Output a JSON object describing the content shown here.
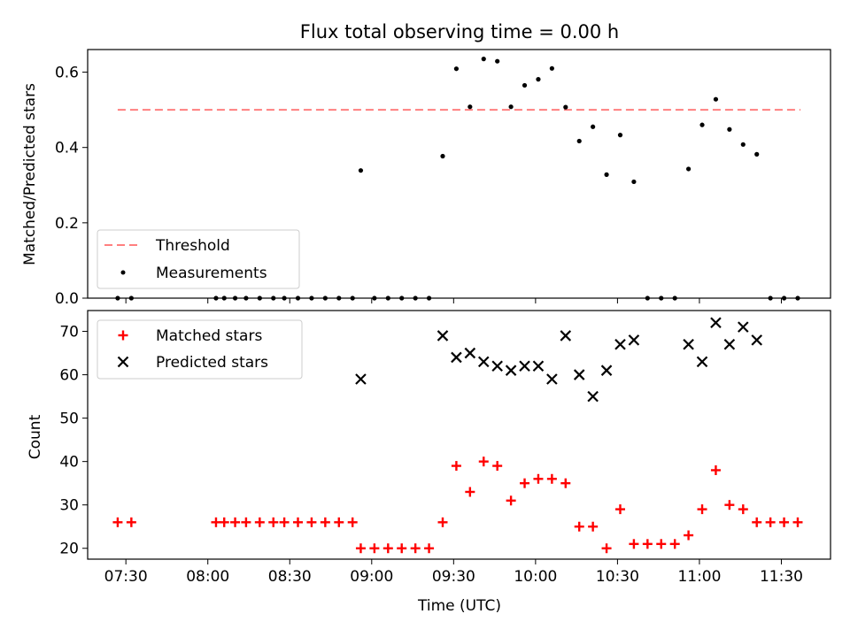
{
  "chart_data": [
    {
      "type": "scatter",
      "title": "Flux total observing time = 0.00 h",
      "xlabel": "",
      "ylabel": "Matched/Predicted stars",
      "ylim": [
        0,
        0.66
      ],
      "yticks": [
        "0.0",
        "0.2",
        "0.4",
        "0.6"
      ],
      "xticks": [
        "07:30",
        "08:00",
        "08:30",
        "09:00",
        "09:30",
        "10:00",
        "10:30",
        "11:00",
        "11:30"
      ],
      "threshold": {
        "name": "Threshold",
        "value": 0.5,
        "x_start": "07:27",
        "x_end": "11:37",
        "color": "#ff7f7f"
      },
      "series": [
        {
          "name": "Measurements",
          "color": "#000000",
          "points": [
            [
              "07:27",
              0.0
            ],
            [
              "07:32",
              0.0
            ],
            [
              "08:03",
              0.0
            ],
            [
              "08:06",
              0.0
            ],
            [
              "08:10",
              0.0
            ],
            [
              "08:14",
              0.0
            ],
            [
              "08:19",
              0.0
            ],
            [
              "08:24",
              0.0
            ],
            [
              "08:28",
              0.0
            ],
            [
              "08:33",
              0.0
            ],
            [
              "08:38",
              0.0
            ],
            [
              "08:43",
              0.0
            ],
            [
              "08:48",
              0.0
            ],
            [
              "08:53",
              0.0
            ],
            [
              "08:56",
              0.339
            ],
            [
              "09:01",
              0.0
            ],
            [
              "09:06",
              0.0
            ],
            [
              "09:11",
              0.0
            ],
            [
              "09:16",
              0.0
            ],
            [
              "09:21",
              0.0
            ],
            [
              "09:26",
              0.377
            ],
            [
              "09:31",
              0.609
            ],
            [
              "09:36",
              0.508
            ],
            [
              "09:41",
              0.635
            ],
            [
              "09:46",
              0.629
            ],
            [
              "09:51",
              0.508
            ],
            [
              "09:56",
              0.565
            ],
            [
              "10:01",
              0.581
            ],
            [
              "10:06",
              0.61
            ],
            [
              "10:11",
              0.507
            ],
            [
              "10:16",
              0.417
            ],
            [
              "10:21",
              0.455
            ],
            [
              "10:26",
              0.328
            ],
            [
              "10:31",
              0.433
            ],
            [
              "10:36",
              0.309
            ],
            [
              "10:41",
              0.0
            ],
            [
              "10:46",
              0.0
            ],
            [
              "10:51",
              0.0
            ],
            [
              "10:56",
              0.343
            ],
            [
              "11:01",
              0.46
            ],
            [
              "11:06",
              0.528
            ],
            [
              "11:11",
              0.448
            ],
            [
              "11:16",
              0.408
            ],
            [
              "11:21",
              0.382
            ],
            [
              "11:26",
              0.0
            ],
            [
              "11:31",
              0.0
            ],
            [
              "11:36",
              0.0
            ]
          ]
        }
      ],
      "legend": {
        "placement": "lower-left",
        "entries": [
          "Threshold",
          "Measurements"
        ]
      }
    },
    {
      "type": "scatter",
      "title": "",
      "xlabel": "Time (UTC)",
      "ylabel": "Count",
      "ylim": [
        17.5,
        74.8
      ],
      "yticks": [
        "20",
        "30",
        "40",
        "50",
        "60",
        "70"
      ],
      "xticks": [
        "07:30",
        "08:00",
        "08:30",
        "09:00",
        "09:30",
        "10:00",
        "10:30",
        "11:00",
        "11:30"
      ],
      "series": [
        {
          "name": "Matched stars",
          "color": "#ff0000",
          "marker": "plus",
          "points": [
            [
              "07:27",
              26
            ],
            [
              "07:32",
              26
            ],
            [
              "08:03",
              26
            ],
            [
              "08:06",
              26
            ],
            [
              "08:10",
              26
            ],
            [
              "08:14",
              26
            ],
            [
              "08:19",
              26
            ],
            [
              "08:24",
              26
            ],
            [
              "08:28",
              26
            ],
            [
              "08:33",
              26
            ],
            [
              "08:38",
              26
            ],
            [
              "08:43",
              26
            ],
            [
              "08:48",
              26
            ],
            [
              "08:53",
              26
            ],
            [
              "08:56",
              20
            ],
            [
              "09:01",
              20
            ],
            [
              "09:06",
              20
            ],
            [
              "09:11",
              20
            ],
            [
              "09:16",
              20
            ],
            [
              "09:21",
              20
            ],
            [
              "09:26",
              26
            ],
            [
              "09:31",
              39
            ],
            [
              "09:36",
              33
            ],
            [
              "09:41",
              40
            ],
            [
              "09:46",
              39
            ],
            [
              "09:51",
              31
            ],
            [
              "09:56",
              35
            ],
            [
              "10:01",
              36
            ],
            [
              "10:06",
              36
            ],
            [
              "10:11",
              35
            ],
            [
              "10:16",
              25
            ],
            [
              "10:21",
              25
            ],
            [
              "10:26",
              20
            ],
            [
              "10:31",
              29
            ],
            [
              "10:36",
              21
            ],
            [
              "10:41",
              21
            ],
            [
              "10:46",
              21
            ],
            [
              "10:51",
              21
            ],
            [
              "10:56",
              23
            ],
            [
              "11:01",
              29
            ],
            [
              "11:06",
              38
            ],
            [
              "11:11",
              30
            ],
            [
              "11:16",
              29
            ],
            [
              "11:21",
              26
            ],
            [
              "11:26",
              26
            ],
            [
              "11:31",
              26
            ],
            [
              "11:36",
              26
            ]
          ]
        },
        {
          "name": "Predicted stars",
          "color": "#000000",
          "marker": "x",
          "points": [
            [
              "08:56",
              59
            ],
            [
              "09:26",
              69
            ],
            [
              "09:31",
              64
            ],
            [
              "09:36",
              65
            ],
            [
              "09:41",
              63
            ],
            [
              "09:46",
              62
            ],
            [
              "09:51",
              61
            ],
            [
              "09:56",
              62
            ],
            [
              "10:01",
              62
            ],
            [
              "10:06",
              59
            ],
            [
              "10:11",
              69
            ],
            [
              "10:16",
              60
            ],
            [
              "10:21",
              55
            ],
            [
              "10:26",
              61
            ],
            [
              "10:31",
              67
            ],
            [
              "10:36",
              68
            ],
            [
              "10:56",
              67
            ],
            [
              "11:01",
              63
            ],
            [
              "11:06",
              72
            ],
            [
              "11:11",
              67
            ],
            [
              "11:16",
              71
            ],
            [
              "11:21",
              68
            ]
          ]
        }
      ],
      "legend": {
        "placement": "top-left",
        "entries": [
          "Matched stars",
          "Predicted stars"
        ]
      }
    }
  ]
}
